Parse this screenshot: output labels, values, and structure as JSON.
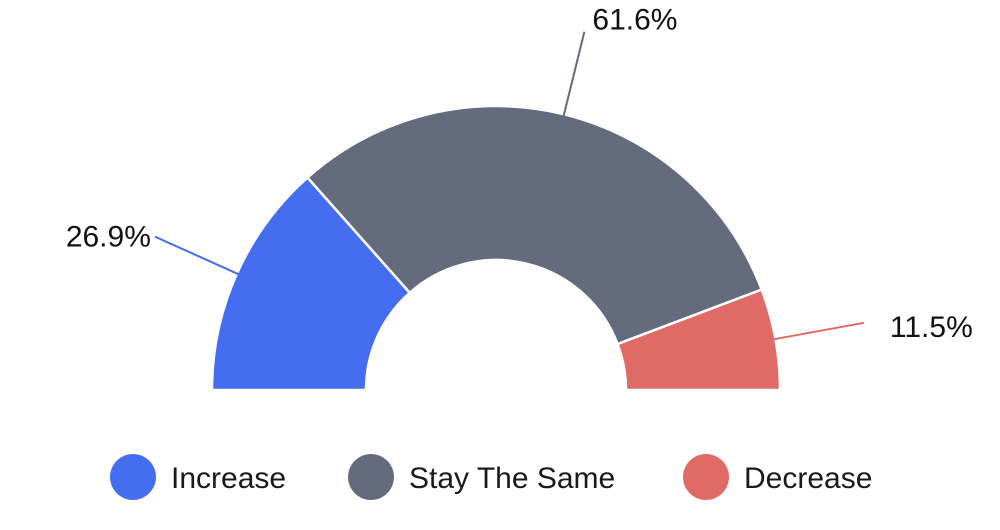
{
  "chart_data": {
    "type": "pie",
    "variant": "half-donut",
    "legend_position": "bottom",
    "slices": [
      {
        "label": "Increase",
        "value": 26.9,
        "display": "26.9%",
        "color": "#456DF0"
      },
      {
        "label": "Stay The Same",
        "value": 61.6,
        "display": "61.6%",
        "color": "#636B7D"
      },
      {
        "label": "Decrease",
        "value": 11.5,
        "display": "11.5%",
        "color": "#E06B66"
      }
    ]
  }
}
